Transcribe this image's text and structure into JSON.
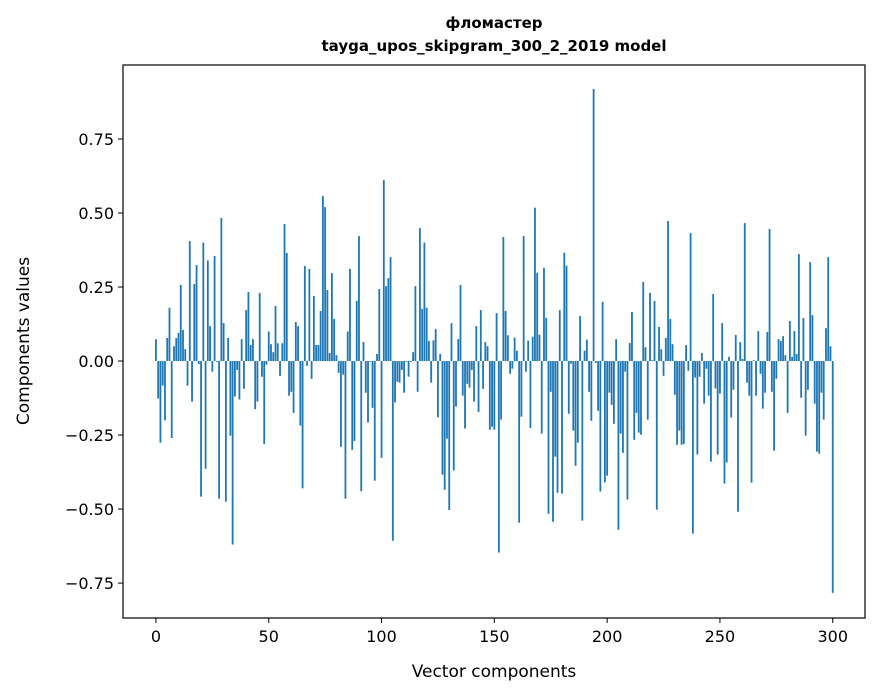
{
  "chart_data": {
    "type": "bar",
    "title": [
      "фломастер",
      "tayga_upos_skipgram_300_2_2019 model"
    ],
    "xlabel": "Vector components",
    "ylabel": "Components values",
    "xlim": [
      -14.6,
      314.3
    ],
    "ylim": [
      -0.868,
      1.0
    ],
    "xticks": [
      0,
      50,
      100,
      150,
      200,
      250,
      300
    ],
    "xtick_labels": [
      "0",
      "50",
      "100",
      "150",
      "200",
      "250",
      "300"
    ],
    "yticks": [
      -0.75,
      -0.5,
      -0.25,
      0,
      0.25,
      0.5,
      0.75
    ],
    "ytick_labels": [
      "−0.75",
      "−0.50",
      "−0.25",
      "0.00",
      "0.25",
      "0.50",
      "0.75"
    ],
    "grid": false,
    "color": "#1f77b4",
    "values": [
      0.074,
      -0.127,
      -0.276,
      -0.083,
      -0.2,
      0.078,
      0.18,
      -0.26,
      0.05,
      0.078,
      0.095,
      0.257,
      0.105,
      0.04,
      -0.083,
      0.405,
      -0.137,
      0.26,
      0.324,
      -0.01,
      -0.458,
      0.4,
      -0.364,
      0.34,
      0.118,
      -0.036,
      0.355,
      -0.003,
      -0.465,
      0.483,
      0.128,
      -0.475,
      0.078,
      -0.252,
      -0.62,
      -0.12,
      -0.03,
      -0.13,
      0.074,
      -0.094,
      0.172,
      0.233,
      0.054,
      0.074,
      -0.163,
      -0.137,
      0.23,
      -0.053,
      -0.28,
      -0.012,
      0.1,
      0.057,
      0.03,
      0.186,
      0.06,
      -0.05,
      0.06,
      0.463,
      0.365,
      -0.117,
      -0.104,
      -0.175,
      0.132,
      0.118,
      -0.218,
      -0.43,
      0.321,
      -0.016,
      0.311,
      -0.06,
      0.22,
      0.054,
      0.054,
      0.169,
      0.557,
      0.52,
      0.24,
      0.027,
      0.297,
      0.142,
      0.02,
      -0.04,
      -0.29,
      -0.046,
      -0.465,
      0.1,
      0.311,
      -0.3,
      -0.27,
      0.203,
      0.422,
      -0.44,
      0.064,
      -0.107,
      -0.208,
      -0.003,
      -0.158,
      -0.404,
      0.024,
      0.243,
      -0.327,
      0.611,
      0.253,
      0.28,
      0.351,
      -0.607,
      -0.14,
      -0.07,
      -0.073,
      -0.03,
      -0.107,
      -0.003,
      -0.053,
      -0.003,
      0.03,
      0.253,
      -0.104,
      0.449,
      0.176,
      0.4,
      0.18,
      0.068,
      -0.073,
      0.07,
      0.108,
      -0.19,
      0.024,
      -0.384,
      -0.435,
      -0.262,
      -0.503,
      0.128,
      -0.37,
      -0.154,
      0.074,
      0.257,
      -0.117,
      -0.228,
      -0.077,
      -0.09,
      -0.03,
      -0.137,
      0.118,
      -0.172,
      0.172,
      -0.094,
      0.064,
      0.05,
      -0.232,
      -0.222,
      -0.232,
      0.162,
      -0.647,
      -0.198,
      0.419,
      0.169,
      0.087,
      -0.043,
      -0.026,
      0.079,
      0.035,
      -0.546,
      -0.188,
      0.422,
      -0.036,
      0.069,
      -0.226,
      0.082,
      0.518,
      0.298,
      0.089,
      -0.245,
      0.315,
      0.146,
      -0.516,
      -0.104,
      -0.543,
      -0.323,
      -0.445,
      0.172,
      -0.448,
      0.366,
      0.322,
      -0.178,
      -0.009,
      -0.235,
      -0.354,
      -0.276,
      0.152,
      -0.539,
      0.035,
      0.072,
      -0.104,
      -0.202,
      0.919,
      -0.006,
      -0.168,
      -0.441,
      0.2,
      -0.41,
      -0.387,
      -0.107,
      -0.148,
      -0.212,
      0.074,
      -0.57,
      -0.245,
      -0.31,
      -0.036,
      -0.468,
      0.061,
      0.166,
      -0.266,
      -0.175,
      -0.242,
      -0.249,
      0.267,
      0.047,
      -0.198,
      0.23,
      0.003,
      0.203,
      -0.502,
      0.115,
      0.04,
      -0.05,
      0.078,
      0.473,
      0.142,
      0.057,
      -0.114,
      -0.283,
      -0.235,
      -0.283,
      -0.28,
      0.054,
      -0.033,
      0.432,
      -0.583,
      -0.056,
      -0.316,
      -0.053,
      0.027,
      -0.144,
      -0.026,
      -0.117,
      -0.34,
      0.226,
      -0.093,
      -0.316,
      -0.11,
      0.128,
      -0.414,
      -0.343,
      0.014,
      -0.191,
      -0.097,
      0.088,
      -0.509,
      0.064,
      0.007,
      0.466,
      -0.073,
      -0.117,
      -0.411,
      0.003,
      -0.117,
      0.101,
      -0.043,
      -0.161,
      -0.107,
      0.098,
      0.446,
      -0.104,
      -0.303,
      -0.06,
      0.074,
      0.068,
      0.084,
      0.02,
      -0.175,
      0.135,
      0.014,
      0.101,
      0.024,
      0.361,
      -0.124,
      0.145,
      -0.252,
      -0.097,
      0.334,
      0.155,
      -0.144,
      -0.306,
      -0.313,
      -0.107,
      -0.198,
      0.111,
      0.351,
      0.05,
      -0.783
    ]
  }
}
